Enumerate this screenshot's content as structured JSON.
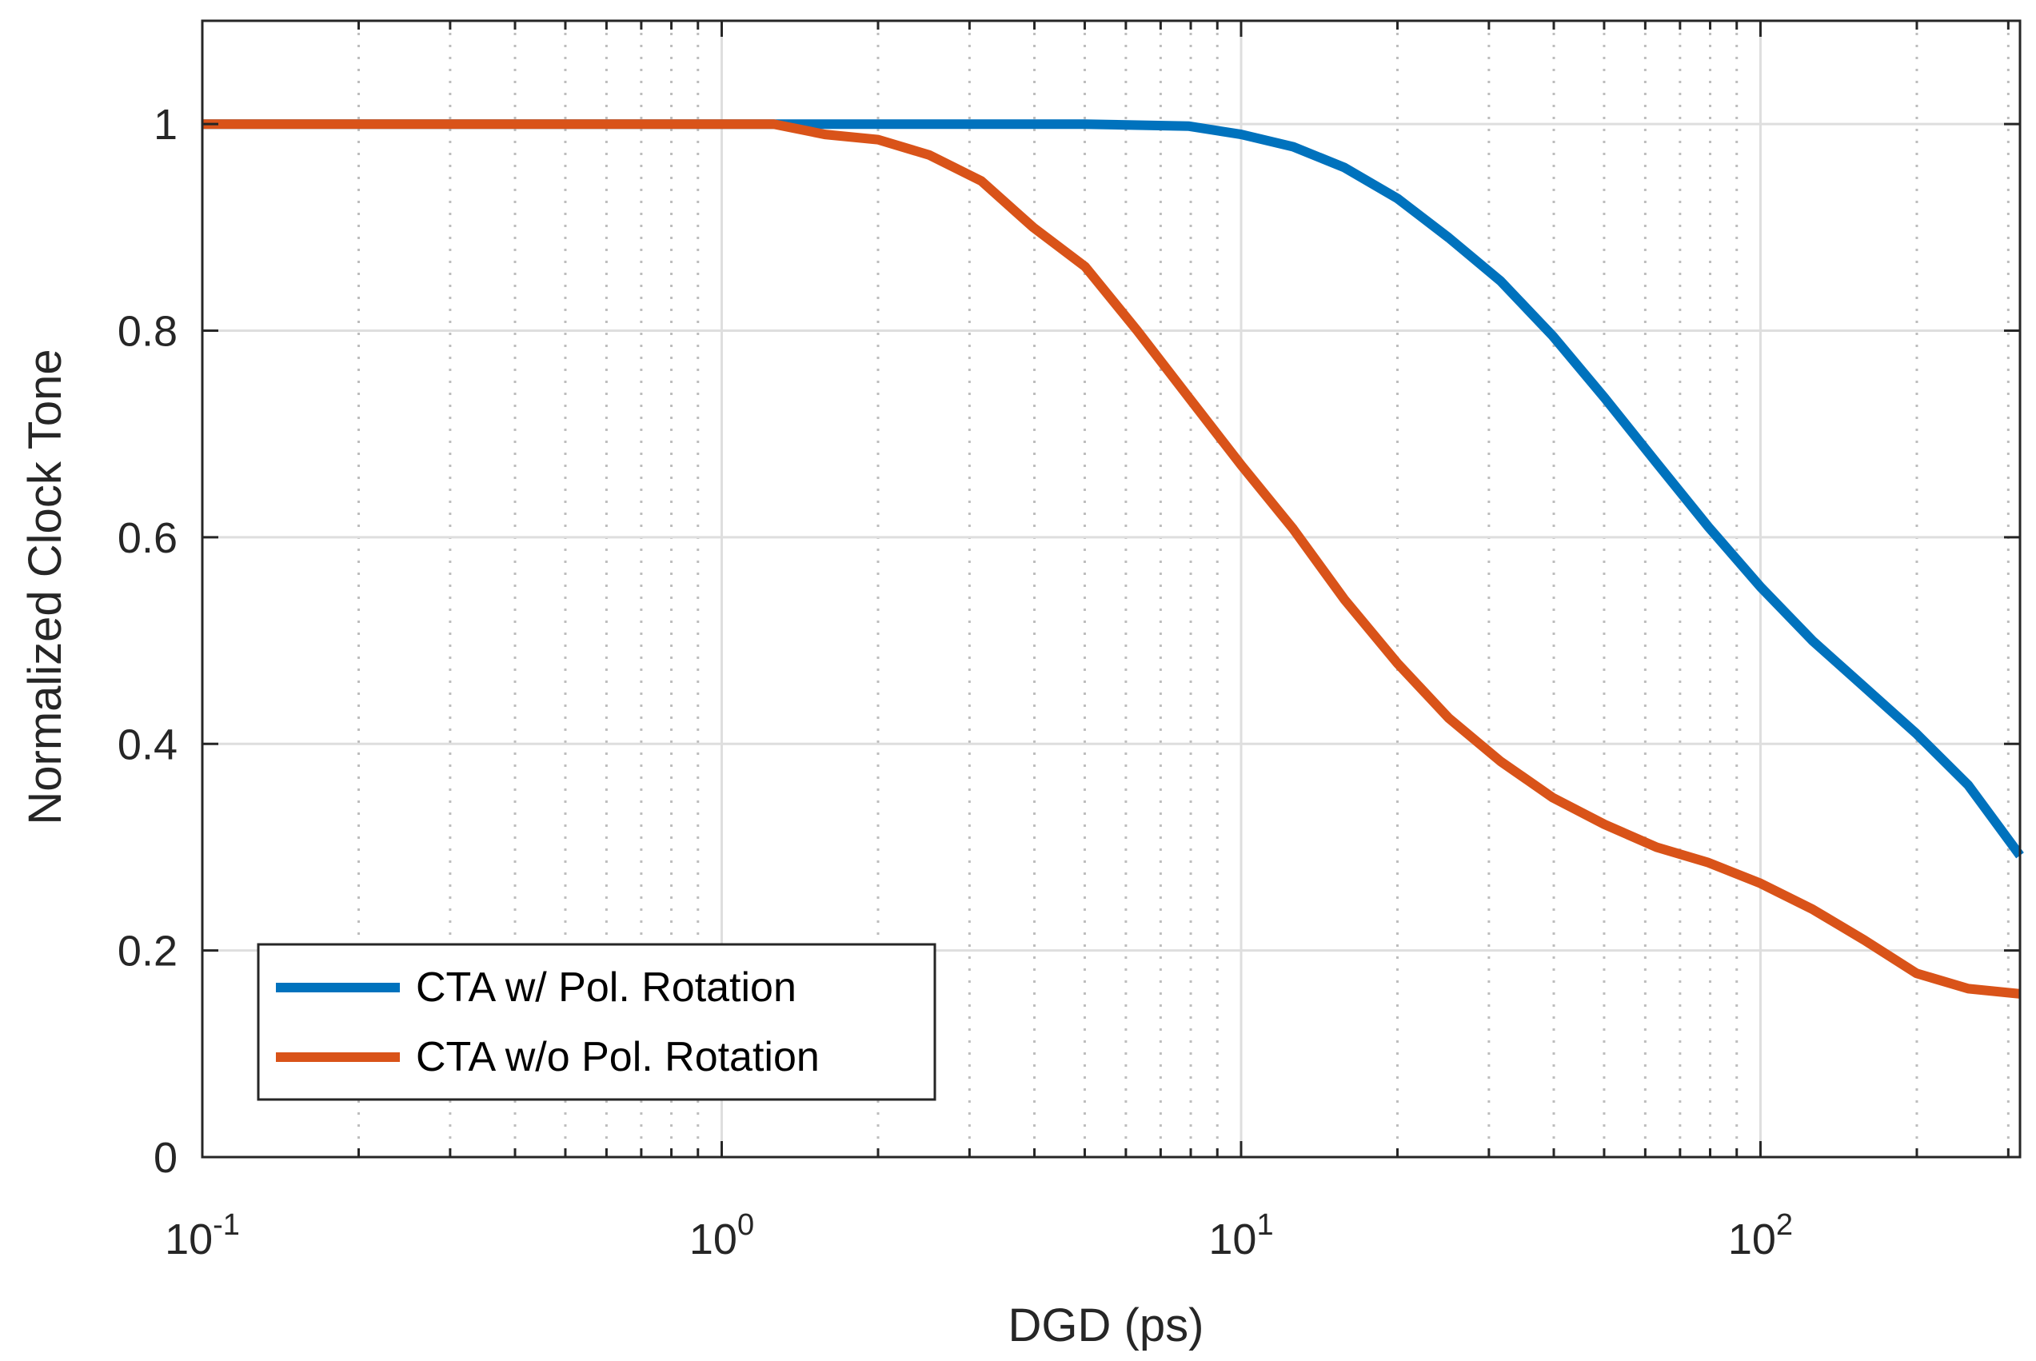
{
  "chart_data": {
    "type": "line",
    "title": "",
    "xlabel": "DGD (ps)",
    "ylabel": "Normalized Clock Tone",
    "xscale": "log",
    "xlim": [
      0.1,
      316
    ],
    "ylim": [
      0,
      1.1
    ],
    "grid": true,
    "legend_location": "bottom-left",
    "x_ticks": [
      {
        "value": 0.1,
        "base": "10",
        "exp": "-1"
      },
      {
        "value": 1,
        "base": "10",
        "exp": "0"
      },
      {
        "value": 10,
        "base": "10",
        "exp": "1"
      },
      {
        "value": 100,
        "base": "10",
        "exp": "2"
      }
    ],
    "y_ticks": [
      {
        "value": 0,
        "label": "0"
      },
      {
        "value": 0.2,
        "label": "0.2"
      },
      {
        "value": 0.4,
        "label": "0.4"
      },
      {
        "value": 0.6,
        "label": "0.6"
      },
      {
        "value": 0.8,
        "label": "0.8"
      },
      {
        "value": 1,
        "label": "1"
      }
    ],
    "series": [
      {
        "name": "CTA w/ Pol. Rotation",
        "color": "#0072BD",
        "x": [
          0.1,
          0.316,
          1,
          1.26,
          2,
          3.16,
          5,
          7.94,
          10,
          12.6,
          15.8,
          20,
          25.1,
          31.6,
          39.8,
          50.1,
          63.1,
          79.4,
          100,
          125.9,
          158.5,
          199.5,
          251.2,
          316
        ],
        "y": [
          1,
          1,
          1,
          1,
          1,
          1,
          1,
          0.998,
          0.99,
          0.978,
          0.958,
          0.928,
          0.89,
          0.848,
          0.795,
          0.735,
          0.672,
          0.61,
          0.552,
          0.5,
          0.455,
          0.41,
          0.36,
          0.292
        ]
      },
      {
        "name": "CTA w/o Pol. Rotation",
        "color": "#D95319",
        "x": [
          0.1,
          0.316,
          1,
          1.26,
          1.58,
          2,
          2.51,
          3.16,
          3.98,
          5.01,
          6.31,
          7.94,
          10,
          12.6,
          15.8,
          20,
          25.1,
          31.6,
          39.8,
          50.1,
          63.1,
          79.4,
          100,
          125.9,
          158.5,
          199.5,
          251.2,
          316
        ],
        "y": [
          1,
          1,
          1,
          1,
          0.99,
          0.985,
          0.97,
          0.945,
          0.9,
          0.862,
          0.8,
          0.735,
          0.67,
          0.608,
          0.54,
          0.478,
          0.425,
          0.383,
          0.348,
          0.322,
          0.3,
          0.285,
          0.265,
          0.24,
          0.21,
          0.178,
          0.163,
          0.158
        ]
      }
    ]
  }
}
